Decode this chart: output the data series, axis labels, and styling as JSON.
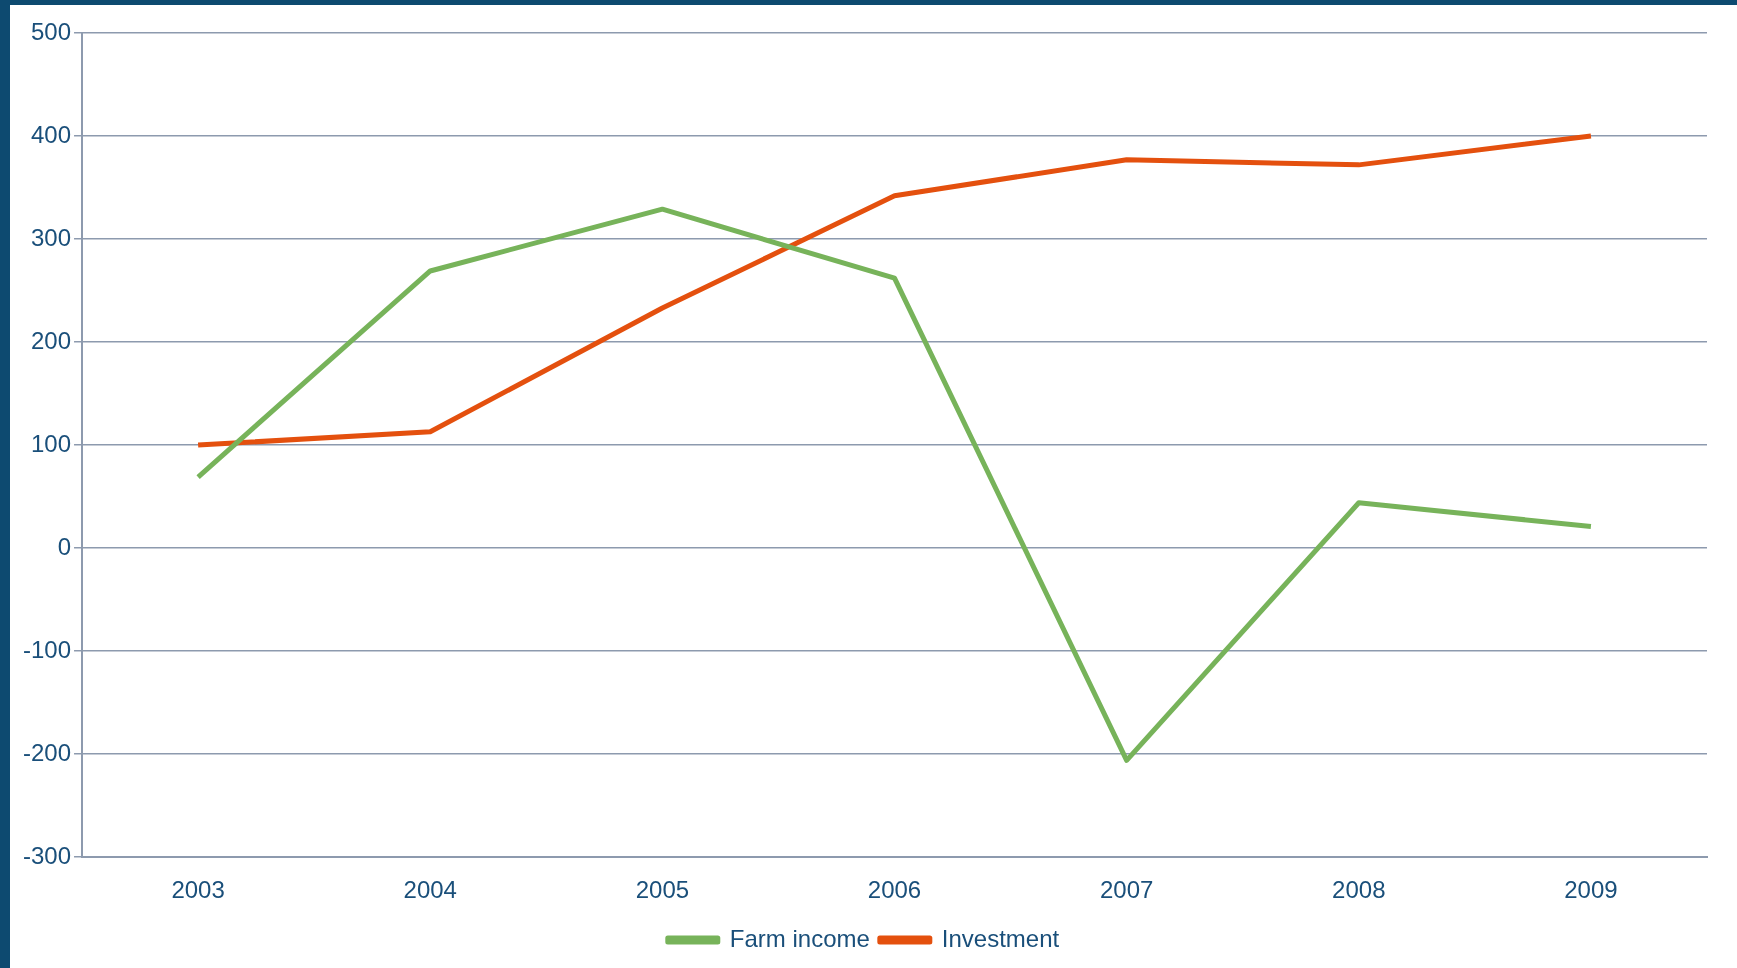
{
  "chart_data": {
    "type": "line",
    "categories": [
      "2003",
      "2004",
      "2005",
      "2006",
      "2007",
      "2008",
      "2009"
    ],
    "series": [
      {
        "name": "Farm income",
        "color": "#77b35a",
        "values": [
          69,
          269,
          329,
          262,
          -206,
          44,
          21
        ]
      },
      {
        "name": "Investment",
        "color": "#e4500e",
        "values": [
          100,
          113,
          233,
          342,
          377,
          372,
          400
        ]
      }
    ],
    "ylim": [
      -300,
      500
    ],
    "yticks": [
      -300,
      -200,
      -100,
      0,
      100,
      200,
      300,
      400,
      500
    ],
    "grid": "y",
    "legend": "bottom",
    "marker": "none",
    "line_style": "solid"
  }
}
